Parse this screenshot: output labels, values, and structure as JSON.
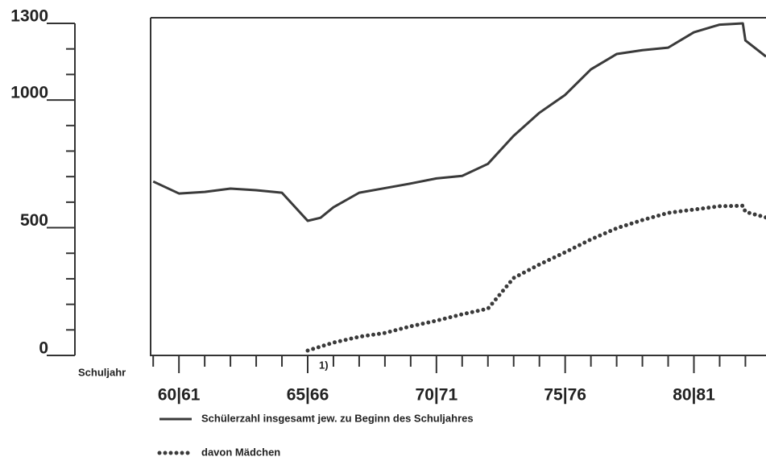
{
  "chart_data": {
    "type": "line",
    "x_label": "Schuljahr",
    "annotation": "1)",
    "xlim": [
      58.9,
      82.8
    ],
    "ylim": [
      0,
      1300
    ],
    "yticks": [
      0,
      500,
      1000,
      1300
    ],
    "yminorticks": [
      100,
      200,
      300,
      400,
      600,
      700,
      800,
      900,
      1100,
      1200
    ],
    "xticks": [
      {
        "value": 60,
        "label": "60|61"
      },
      {
        "value": 65,
        "label": "65|66"
      },
      {
        "value": 70,
        "label": "70|71"
      },
      {
        "value": 75,
        "label": "75|76"
      },
      {
        "value": 80,
        "label": "80|81"
      }
    ],
    "xminorticks": [
      59,
      61,
      62,
      63,
      64,
      66,
      67,
      68,
      69,
      71,
      72,
      73,
      74,
      76,
      77,
      78,
      79,
      81,
      82
    ],
    "series": [
      {
        "name": "Schülerzahl insgesamt jew. zu Beginn des Schuljahres",
        "color": "#3a3a3a",
        "style": "solid",
        "x": [
          59,
          60,
          61,
          62,
          63,
          64,
          65,
          65.5,
          66,
          67,
          68,
          69,
          70,
          71,
          72,
          73,
          74,
          75,
          76,
          77,
          78,
          79,
          80,
          81,
          81.9,
          82,
          82.8
        ],
        "values": [
          681,
          634,
          640,
          653,
          647,
          637,
          527,
          539,
          580,
          637,
          655,
          673,
          693,
          703,
          750,
          860,
          950,
          1020,
          1120,
          1180,
          1195,
          1205,
          1265,
          1295,
          1300,
          1233,
          1170
        ]
      },
      {
        "name": "davon Mädchen",
        "color": "#3a3a3a",
        "style": "dotted",
        "x": [
          65,
          66,
          67,
          68,
          69,
          70,
          71,
          72,
          73,
          74,
          75,
          76,
          77,
          78,
          79,
          80,
          81,
          81.9,
          82,
          82.8
        ],
        "values": [
          19,
          50,
          73,
          88,
          114,
          136,
          161,
          183,
          303,
          356,
          404,
          454,
          498,
          530,
          558,
          571,
          584,
          586,
          562,
          540
        ]
      }
    ]
  }
}
